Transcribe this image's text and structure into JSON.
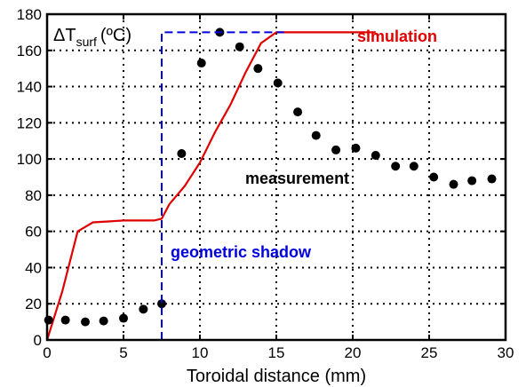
{
  "chart_data": {
    "type": "scatter",
    "xlabel": "Toroidal distance (mm)",
    "ylabel_main": "ΔT",
    "ylabel_sub": "surf",
    "ylabel_unit": "(ºC)",
    "xlim": [
      0,
      30
    ],
    "ylim": [
      0,
      180
    ],
    "x_ticks": [
      "0",
      "5",
      "10",
      "15",
      "20",
      "25",
      "30"
    ],
    "y_ticks": [
      "0",
      "20",
      "40",
      "60",
      "80",
      "100",
      "120",
      "140",
      "160",
      "180"
    ],
    "grid": true,
    "series": [
      {
        "name": "simulation",
        "kind": "line",
        "color": "#e00000",
        "x": [
          0,
          1,
          2,
          3,
          4,
          5,
          6,
          7,
          7.5,
          8,
          9,
          10,
          11,
          12,
          13,
          14,
          15,
          16,
          17,
          18,
          19,
          20,
          21,
          21.5
        ],
        "y": [
          0,
          27,
          60,
          65,
          65.5,
          66,
          66,
          66,
          67,
          75,
          85,
          98,
          115,
          130,
          148,
          164,
          170,
          170,
          170,
          170,
          170,
          170,
          170,
          170
        ]
      },
      {
        "name": "measurement",
        "kind": "scatter",
        "color": "#000000",
        "x": [
          0.1,
          1.2,
          2.5,
          3.7,
          5.0,
          6.3,
          7.5,
          8.8,
          10.1,
          11.3,
          12.6,
          13.8,
          15.1,
          16.4,
          17.6,
          18.9,
          20.2,
          21.5,
          22.8,
          24.0,
          25.3,
          26.6,
          27.8,
          29.1
        ],
        "y": [
          11,
          11,
          10,
          10.5,
          12,
          17,
          20,
          103,
          153,
          170,
          162,
          150,
          142,
          126,
          113,
          105,
          106,
          102,
          96,
          96,
          90,
          86,
          88,
          89
        ]
      },
      {
        "name": "geometric shadow",
        "kind": "dashed-line",
        "color": "#0000dd",
        "x": [
          7.5,
          7.5,
          15.5
        ],
        "y": [
          0,
          170,
          170
        ]
      }
    ],
    "annotations": [
      "simulation",
      "measurement",
      "geometric shadow"
    ]
  }
}
